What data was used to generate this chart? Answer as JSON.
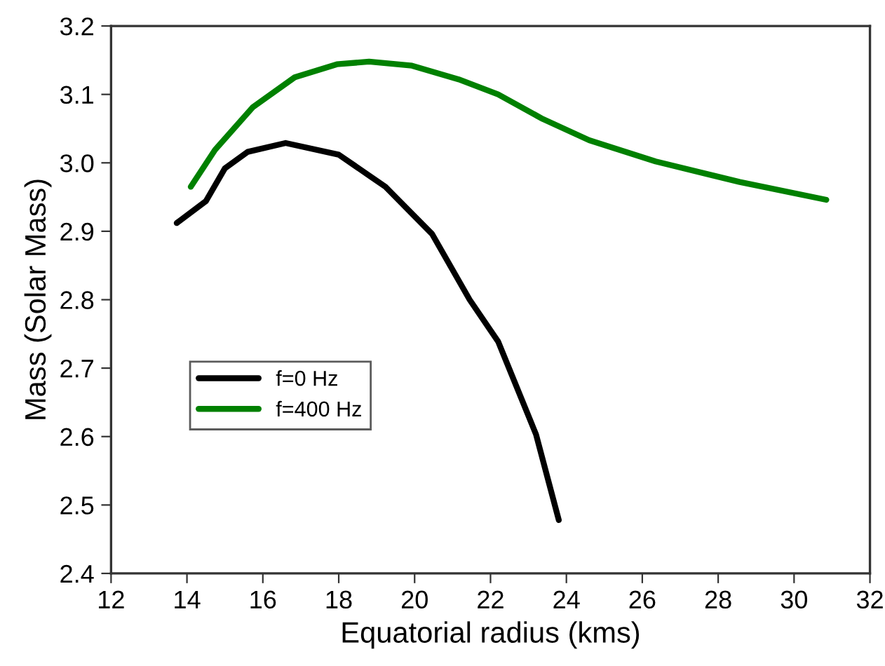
{
  "chart_data": {
    "type": "line",
    "xlabel": "Equatorial radius (kms)",
    "ylabel": "Mass (Solar Mass)",
    "xlim": [
      12,
      32
    ],
    "xticks": [
      12,
      14,
      16,
      18,
      20,
      22,
      24,
      26,
      28,
      30,
      32
    ],
    "ylim": [
      2.4,
      3.2
    ],
    "yticks": [
      2.4,
      2.5,
      2.6,
      2.7,
      2.8,
      2.9,
      {
        "value": 3.0,
        "label": "3.0"
      },
      3.1,
      3.2
    ],
    "grid": false,
    "legend": "center left",
    "marker": "none",
    "line_style": "solid",
    "series": [
      {
        "name": "f=0 Hz",
        "color": "#000000",
        "x": [
          13.73,
          14.5,
          15.0,
          15.6,
          16.6,
          18.0,
          19.23,
          20.46,
          21.45,
          22.2,
          23.2,
          23.8
        ],
        "values": [
          2.912,
          2.944,
          2.992,
          3.016,
          3.029,
          3.012,
          2.965,
          2.896,
          2.8,
          2.739,
          2.603,
          2.478
        ]
      },
      {
        "name": "f=400 Hz",
        "color": "#008000",
        "x": [
          14.1,
          14.74,
          15.73,
          16.84,
          17.95,
          18.8,
          19.93,
          21.16,
          22.2,
          23.38,
          24.6,
          26.35,
          28.57,
          30.85
        ],
        "values": [
          2.965,
          3.019,
          3.081,
          3.125,
          3.144,
          3.148,
          3.142,
          3.122,
          3.1,
          3.064,
          3.033,
          3.002,
          2.972,
          2.946
        ]
      }
    ]
  }
}
